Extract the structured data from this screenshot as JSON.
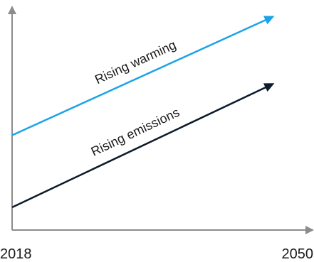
{
  "chart_data": {
    "type": "line",
    "title": "",
    "xlabel": "",
    "ylabel": "",
    "x_ticks": [
      "2018",
      "2050"
    ],
    "grid": false,
    "legend": "none",
    "series": [
      {
        "values": [
          0.38,
          1.0
        ],
        "color": "#1aa3e8",
        "annotation": "Rising warming"
      },
      {
        "values": [
          0.0,
          0.645
        ],
        "color": "#0d1b2a",
        "annotation": "Rising emissions"
      }
    ],
    "axis_color": "#8c8c8c"
  }
}
